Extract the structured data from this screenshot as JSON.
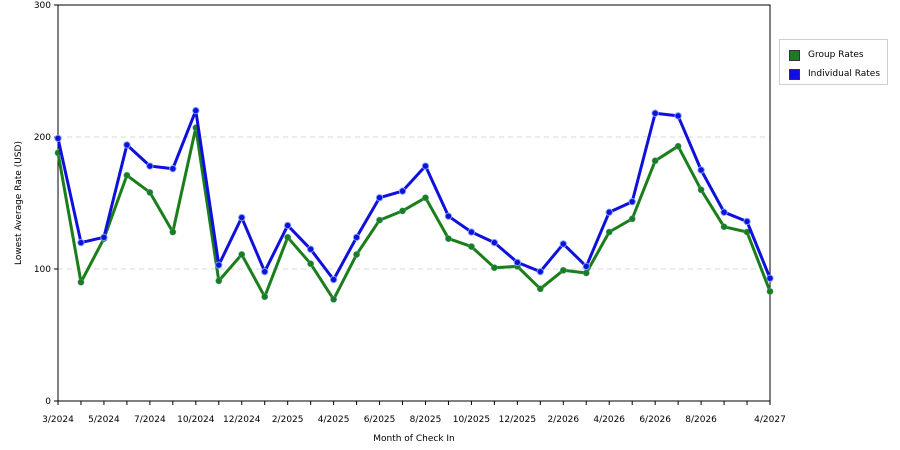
{
  "chart_data": {
    "type": "line",
    "title": "",
    "xlabel": "Month of Check In",
    "ylabel": "Lowest Average Rate (USD)",
    "ylim": [
      0,
      300
    ],
    "yticks": [
      0,
      100,
      200,
      300
    ],
    "grid": "horizontal-dashed",
    "legend_position": "right",
    "x_tick_labels": [
      "3/2024",
      "5/2024",
      "7/2024",
      "10/2024",
      "12/2024",
      "2/2025",
      "4/2025",
      "6/2025",
      "8/2025",
      "10/2025",
      "12/2025",
      "2/2026",
      "4/2026",
      "6/2026",
      "8/2026",
      "4/2027"
    ],
    "x_tick_positions": [
      0,
      2,
      4,
      6,
      8,
      10,
      12,
      14,
      16,
      18,
      20,
      22,
      24,
      26,
      28,
      31
    ],
    "series": [
      {
        "name": "Group Rates",
        "color": "#1a7f1a",
        "values": [
          188,
          90,
          123,
          171,
          158,
          128,
          207,
          91,
          111,
          79,
          124,
          104,
          77,
          111,
          137,
          144,
          154,
          123,
          117,
          101,
          102,
          85,
          99,
          97,
          128,
          138,
          182,
          193,
          160,
          132,
          128,
          83
        ]
      },
      {
        "name": "Individual Rates",
        "color": "#1010dd",
        "values": [
          199,
          120,
          124,
          194,
          178,
          176,
          220,
          103,
          139,
          98,
          133,
          115,
          92,
          124,
          154,
          159,
          178,
          140,
          128,
          120,
          105,
          98,
          119,
          102,
          143,
          151,
          218,
          216,
          175,
          143,
          136,
          93
        ]
      }
    ]
  }
}
